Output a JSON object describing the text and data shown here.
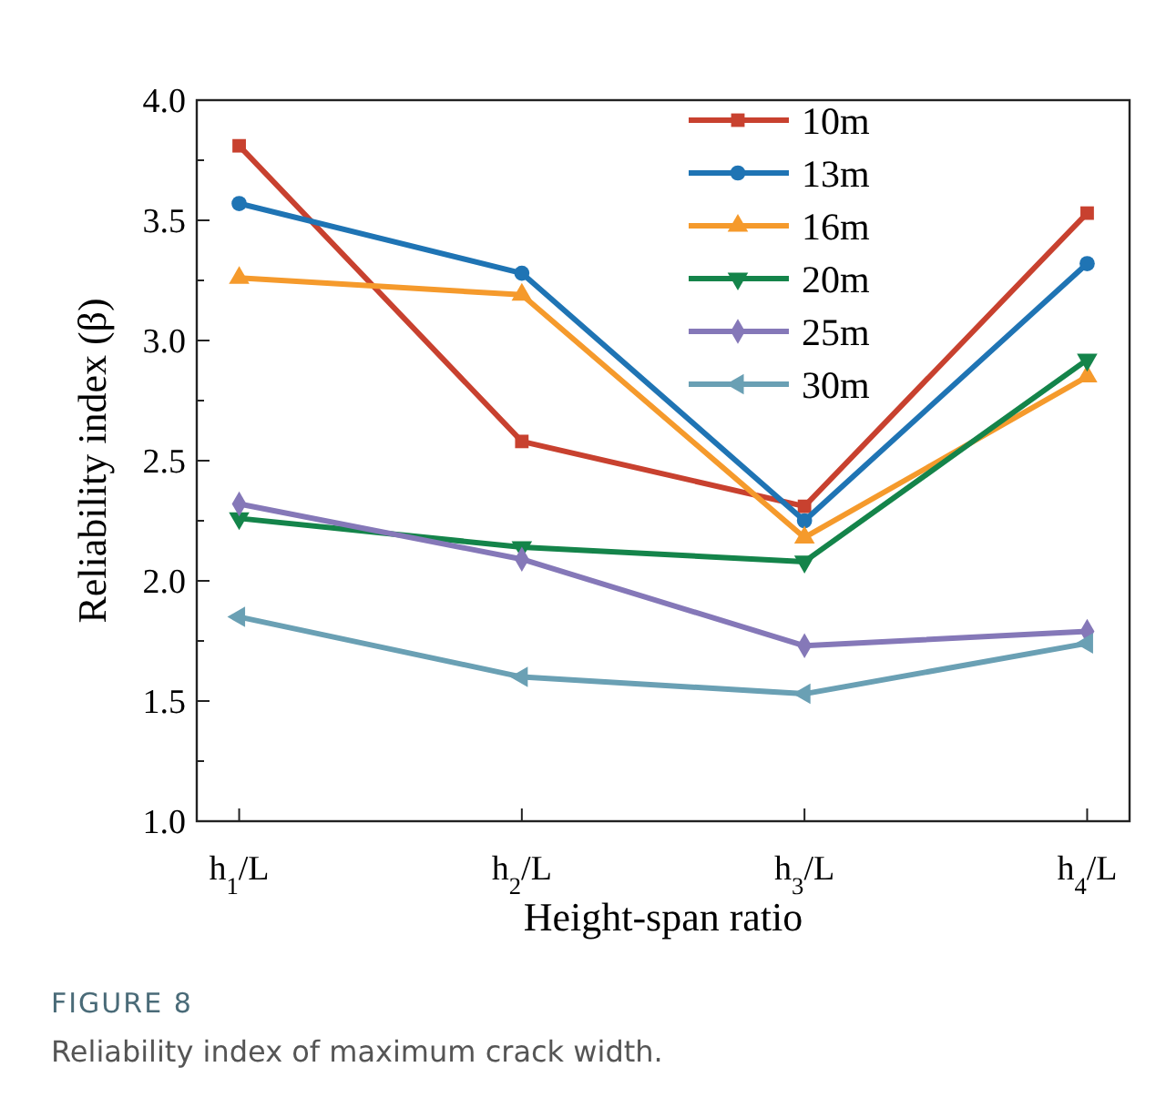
{
  "chart_data": {
    "type": "line",
    "xlabel": "Height-span ratio",
    "ylabel": "Reliability index (β)",
    "categories": [
      "h$_{1}$/L",
      "h$_{2}$/L",
      "h$_{3}$/L",
      "h$_{4}$/L"
    ],
    "ylim": [
      1.0,
      4.0
    ],
    "yticks": [
      {
        "value": 1.0,
        "label": "1.0"
      },
      {
        "value": 1.25,
        "label": null
      },
      {
        "value": 1.5,
        "label": "1.5"
      },
      {
        "value": 1.75,
        "label": null
      },
      {
        "value": 2.0,
        "label": "2.0"
      },
      {
        "value": 2.25,
        "label": null
      },
      {
        "value": 2.5,
        "label": "2.5"
      },
      {
        "value": 2.75,
        "label": null
      },
      {
        "value": 3.0,
        "label": "3.0"
      },
      {
        "value": 3.25,
        "label": null
      },
      {
        "value": 3.5,
        "label": "3.5"
      },
      {
        "value": 3.75,
        "label": null
      },
      {
        "value": 4.0,
        "label": "4.0"
      }
    ],
    "grid": false,
    "legend": "top right",
    "line_style": "solid",
    "series": [
      {
        "name": "10m",
        "color": "#c8412f",
        "marker": "square",
        "values": [
          3.81,
          2.58,
          2.31,
          3.53
        ]
      },
      {
        "name": "13m",
        "color": "#1f74b4",
        "marker": "circle",
        "values": [
          3.57,
          3.28,
          2.25,
          3.32
        ]
      },
      {
        "name": "16m",
        "color": "#f59a2c",
        "marker": "triangle",
        "values": [
          3.26,
          3.19,
          2.18,
          2.85
        ]
      },
      {
        "name": "20m",
        "color": "#14844a",
        "marker": "triangle-down",
        "values": [
          2.26,
          2.14,
          2.08,
          2.92
        ]
      },
      {
        "name": "25m",
        "color": "#8578b8",
        "marker": "diamond",
        "values": [
          2.32,
          2.09,
          1.73,
          1.79
        ]
      },
      {
        "name": "30m",
        "color": "#6aa0b4",
        "marker": "triangle-left",
        "values": [
          1.85,
          1.6,
          1.53,
          1.74
        ]
      }
    ],
    "annotations": [
      "FIGURE 8",
      "Reliability index of maximum crack width."
    ]
  }
}
